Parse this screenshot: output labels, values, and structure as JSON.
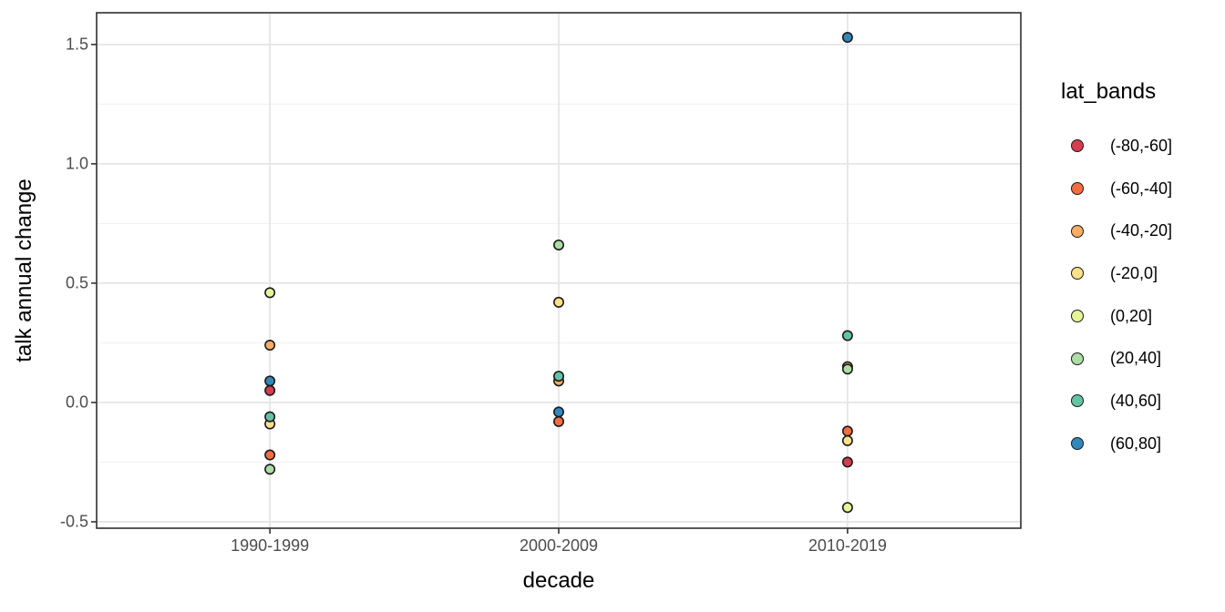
{
  "figure": {
    "background": "#ffffff"
  },
  "chart_data": {
    "type": "scatter",
    "title": "",
    "xlabel": "decade",
    "ylabel": "talk annual change",
    "categories": [
      "1990-1999",
      "2000-2009",
      "2010-2019"
    ],
    "y_axis": {
      "tick_values": [
        1.5,
        1.0,
        0.5,
        0.0,
        -0.5
      ],
      "tick_labels": [
        "1.5",
        "1.0",
        "0.5",
        "0.0",
        "-0.5"
      ],
      "minor_tick_values": [
        1.25,
        0.75,
        0.25,
        -0.25
      ],
      "domain": [
        -0.527,
        1.633
      ]
    },
    "legend": {
      "title": "lat_bands",
      "position": "right"
    },
    "series": [
      {
        "name": "(-80,-60]",
        "color": "#d53e4f",
        "values": [
          0.05,
          null,
          -0.25
        ]
      },
      {
        "name": "(-60,-40]",
        "color": "#f46d43",
        "values": [
          -0.22,
          -0.08,
          -0.12
        ]
      },
      {
        "name": "(-40,-20]",
        "color": "#fdae61",
        "values": [
          0.24,
          0.09,
          0.15
        ]
      },
      {
        "name": "(-20,0]",
        "color": "#fee08b",
        "values": [
          -0.09,
          0.42,
          -0.16
        ]
      },
      {
        "name": "(0,20]",
        "color": "#e6f598",
        "values": [
          0.46,
          null,
          -0.44
        ]
      },
      {
        "name": "(20,40]",
        "color": "#abdda4",
        "values": [
          -0.28,
          0.66,
          0.14
        ]
      },
      {
        "name": "(40,60]",
        "color": "#66c2a5",
        "values": [
          -0.06,
          0.11,
          0.28
        ]
      },
      {
        "name": "(60,80]",
        "color": "#3288bd",
        "values": [
          0.09,
          -0.04,
          1.53
        ]
      }
    ],
    "style": {
      "point_fill_stroke": "#1a1a1a",
      "grid_major_color": "#e5e5e5",
      "grid_minor_color": "#f0f0f0",
      "panel_border_color": "#2f2f2f",
      "tick_mark_color": "#333333",
      "axis_text_color": "#4d4d4d",
      "axis_title_color": "#000000"
    }
  }
}
